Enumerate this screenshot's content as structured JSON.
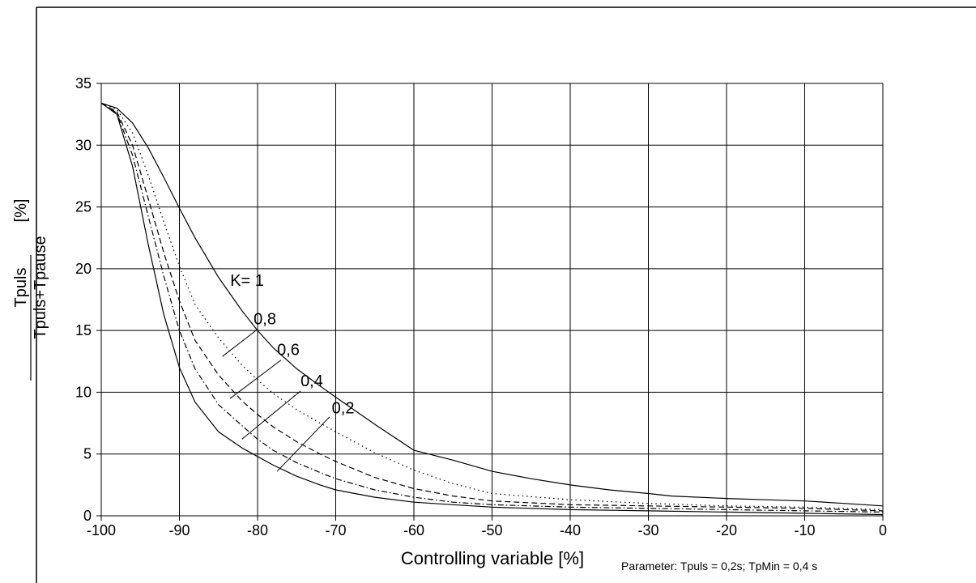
{
  "chart_data": {
    "type": "line",
    "xlabel": "Controlling variable [%]",
    "ylabel": {
      "numerator": "Tpuls",
      "denominator": "Tpuls+Tpause",
      "unit": "[%]"
    },
    "note": "Parameter: Tpuls = 0,2s; TpMin = 0,4 s",
    "xlim": [
      -100,
      0
    ],
    "ylim": [
      0,
      35
    ],
    "x_ticks": [
      -100,
      -90,
      -80,
      -70,
      -60,
      -50,
      -40,
      -30,
      -20,
      -10,
      0
    ],
    "x_tick_labels": [
      "-100",
      "-90",
      "-80",
      "-70",
      "-60",
      "-50",
      "-40",
      "-30",
      "-20",
      "-10",
      "0"
    ],
    "y_ticks": [
      0,
      5,
      10,
      15,
      20,
      25,
      30,
      35
    ],
    "y_tick_labels": [
      "0",
      "5",
      "10",
      "15",
      "20",
      "25",
      "30",
      "35"
    ],
    "grid": true,
    "series": [
      {
        "name": "K= 1",
        "style": "solid",
        "x": [
          -100,
          -98,
          -96,
          -94,
          -92,
          -90,
          -88,
          -85,
          -82,
          -80,
          -78,
          -75,
          -72,
          -70,
          -65,
          -60,
          -55,
          -50,
          -45,
          -40,
          -35,
          -30,
          -27,
          -20,
          -15,
          -10,
          -5,
          0
        ],
        "y": [
          33.4,
          33.0,
          31.8,
          29.8,
          27.4,
          24.9,
          22.5,
          19.3,
          16.6,
          15.0,
          13.6,
          11.9,
          10.5,
          9.6,
          7.4,
          5.3,
          4.5,
          3.6,
          3.0,
          2.5,
          2.1,
          1.8,
          1.6,
          1.4,
          1.3,
          1.2,
          1.0,
          0.8
        ]
      },
      {
        "name": "0,8",
        "style": "dotted",
        "x": [
          -100,
          -98,
          -96,
          -94,
          -92,
          -90,
          -88,
          -85,
          -82,
          -80,
          -78,
          -75,
          -72,
          -70,
          -65,
          -60,
          -55,
          -50,
          -40,
          -30,
          -20,
          -10,
          0
        ],
        "y": [
          33.4,
          32.9,
          31.0,
          27.6,
          23.8,
          20.2,
          17.1,
          14.4,
          12.2,
          11.0,
          9.9,
          8.6,
          7.5,
          6.8,
          5.1,
          3.7,
          2.6,
          1.8,
          1.3,
          1.0,
          0.8,
          0.7,
          0.5
        ]
      },
      {
        "name": "0,6",
        "style": "dashed",
        "x": [
          -100,
          -98,
          -96,
          -94,
          -92,
          -90,
          -88,
          -85,
          -82,
          -80,
          -78,
          -75,
          -72,
          -70,
          -65,
          -60,
          -55,
          -50,
          -40,
          -30,
          -20,
          -10,
          0
        ],
        "y": [
          33.4,
          32.7,
          30.0,
          25.7,
          21.3,
          17.4,
          14.2,
          11.4,
          9.3,
          8.2,
          7.2,
          6.0,
          5.0,
          4.4,
          3.1,
          2.2,
          1.6,
          1.2,
          0.9,
          0.8,
          0.7,
          0.6,
          0.4
        ]
      },
      {
        "name": "0,4",
        "style": "dashdot",
        "x": [
          -100,
          -98,
          -96,
          -94,
          -92,
          -90,
          -88,
          -85,
          -82,
          -80,
          -78,
          -75,
          -72,
          -70,
          -65,
          -60,
          -55,
          -50,
          -40,
          -30,
          -20,
          -10,
          0
        ],
        "y": [
          33.4,
          32.6,
          29.2,
          24.3,
          19.4,
          15.0,
          11.9,
          9.0,
          7.3,
          6.2,
          5.3,
          4.3,
          3.5,
          3.0,
          2.1,
          1.5,
          1.1,
          0.9,
          0.7,
          0.6,
          0.5,
          0.4,
          0.3
        ]
      },
      {
        "name": "0,2",
        "style": "solid",
        "x": [
          -100,
          -98,
          -96,
          -94,
          -92,
          -90,
          -88,
          -85,
          -82,
          -80,
          -78,
          -75,
          -72,
          -70,
          -65,
          -60,
          -55,
          -50,
          -40,
          -30,
          -20,
          -10,
          0
        ],
        "y": [
          33.4,
          32.5,
          28.3,
          22.0,
          16.3,
          12.0,
          9.2,
          6.8,
          5.5,
          4.8,
          4.1,
          3.2,
          2.5,
          2.1,
          1.5,
          1.1,
          0.9,
          0.7,
          0.5,
          0.4,
          0.3,
          0.2,
          0.1
        ]
      }
    ],
    "curve_labels": [
      {
        "text": "K= 1",
        "x": -83.5,
        "y": 18.6,
        "anchor": "start",
        "leader": null
      },
      {
        "text": "0,8",
        "x": -80.5,
        "y": 15.5,
        "anchor": "start",
        "leader": [
          -84.5,
          12.9,
          -80,
          15.1
        ]
      },
      {
        "text": "0,6",
        "x": -77.5,
        "y": 13.0,
        "anchor": "start",
        "leader": [
          -83.5,
          9.5,
          -77,
          12.6
        ]
      },
      {
        "text": "0,4",
        "x": -74.5,
        "y": 10.5,
        "anchor": "start",
        "leader": [
          -82,
          6.2,
          -74.5,
          10.1
        ]
      },
      {
        "text": "0,2",
        "x": -70.5,
        "y": 8.3,
        "anchor": "start",
        "leader": [
          -77.5,
          3.6,
          -70.8,
          8.0
        ]
      }
    ]
  }
}
